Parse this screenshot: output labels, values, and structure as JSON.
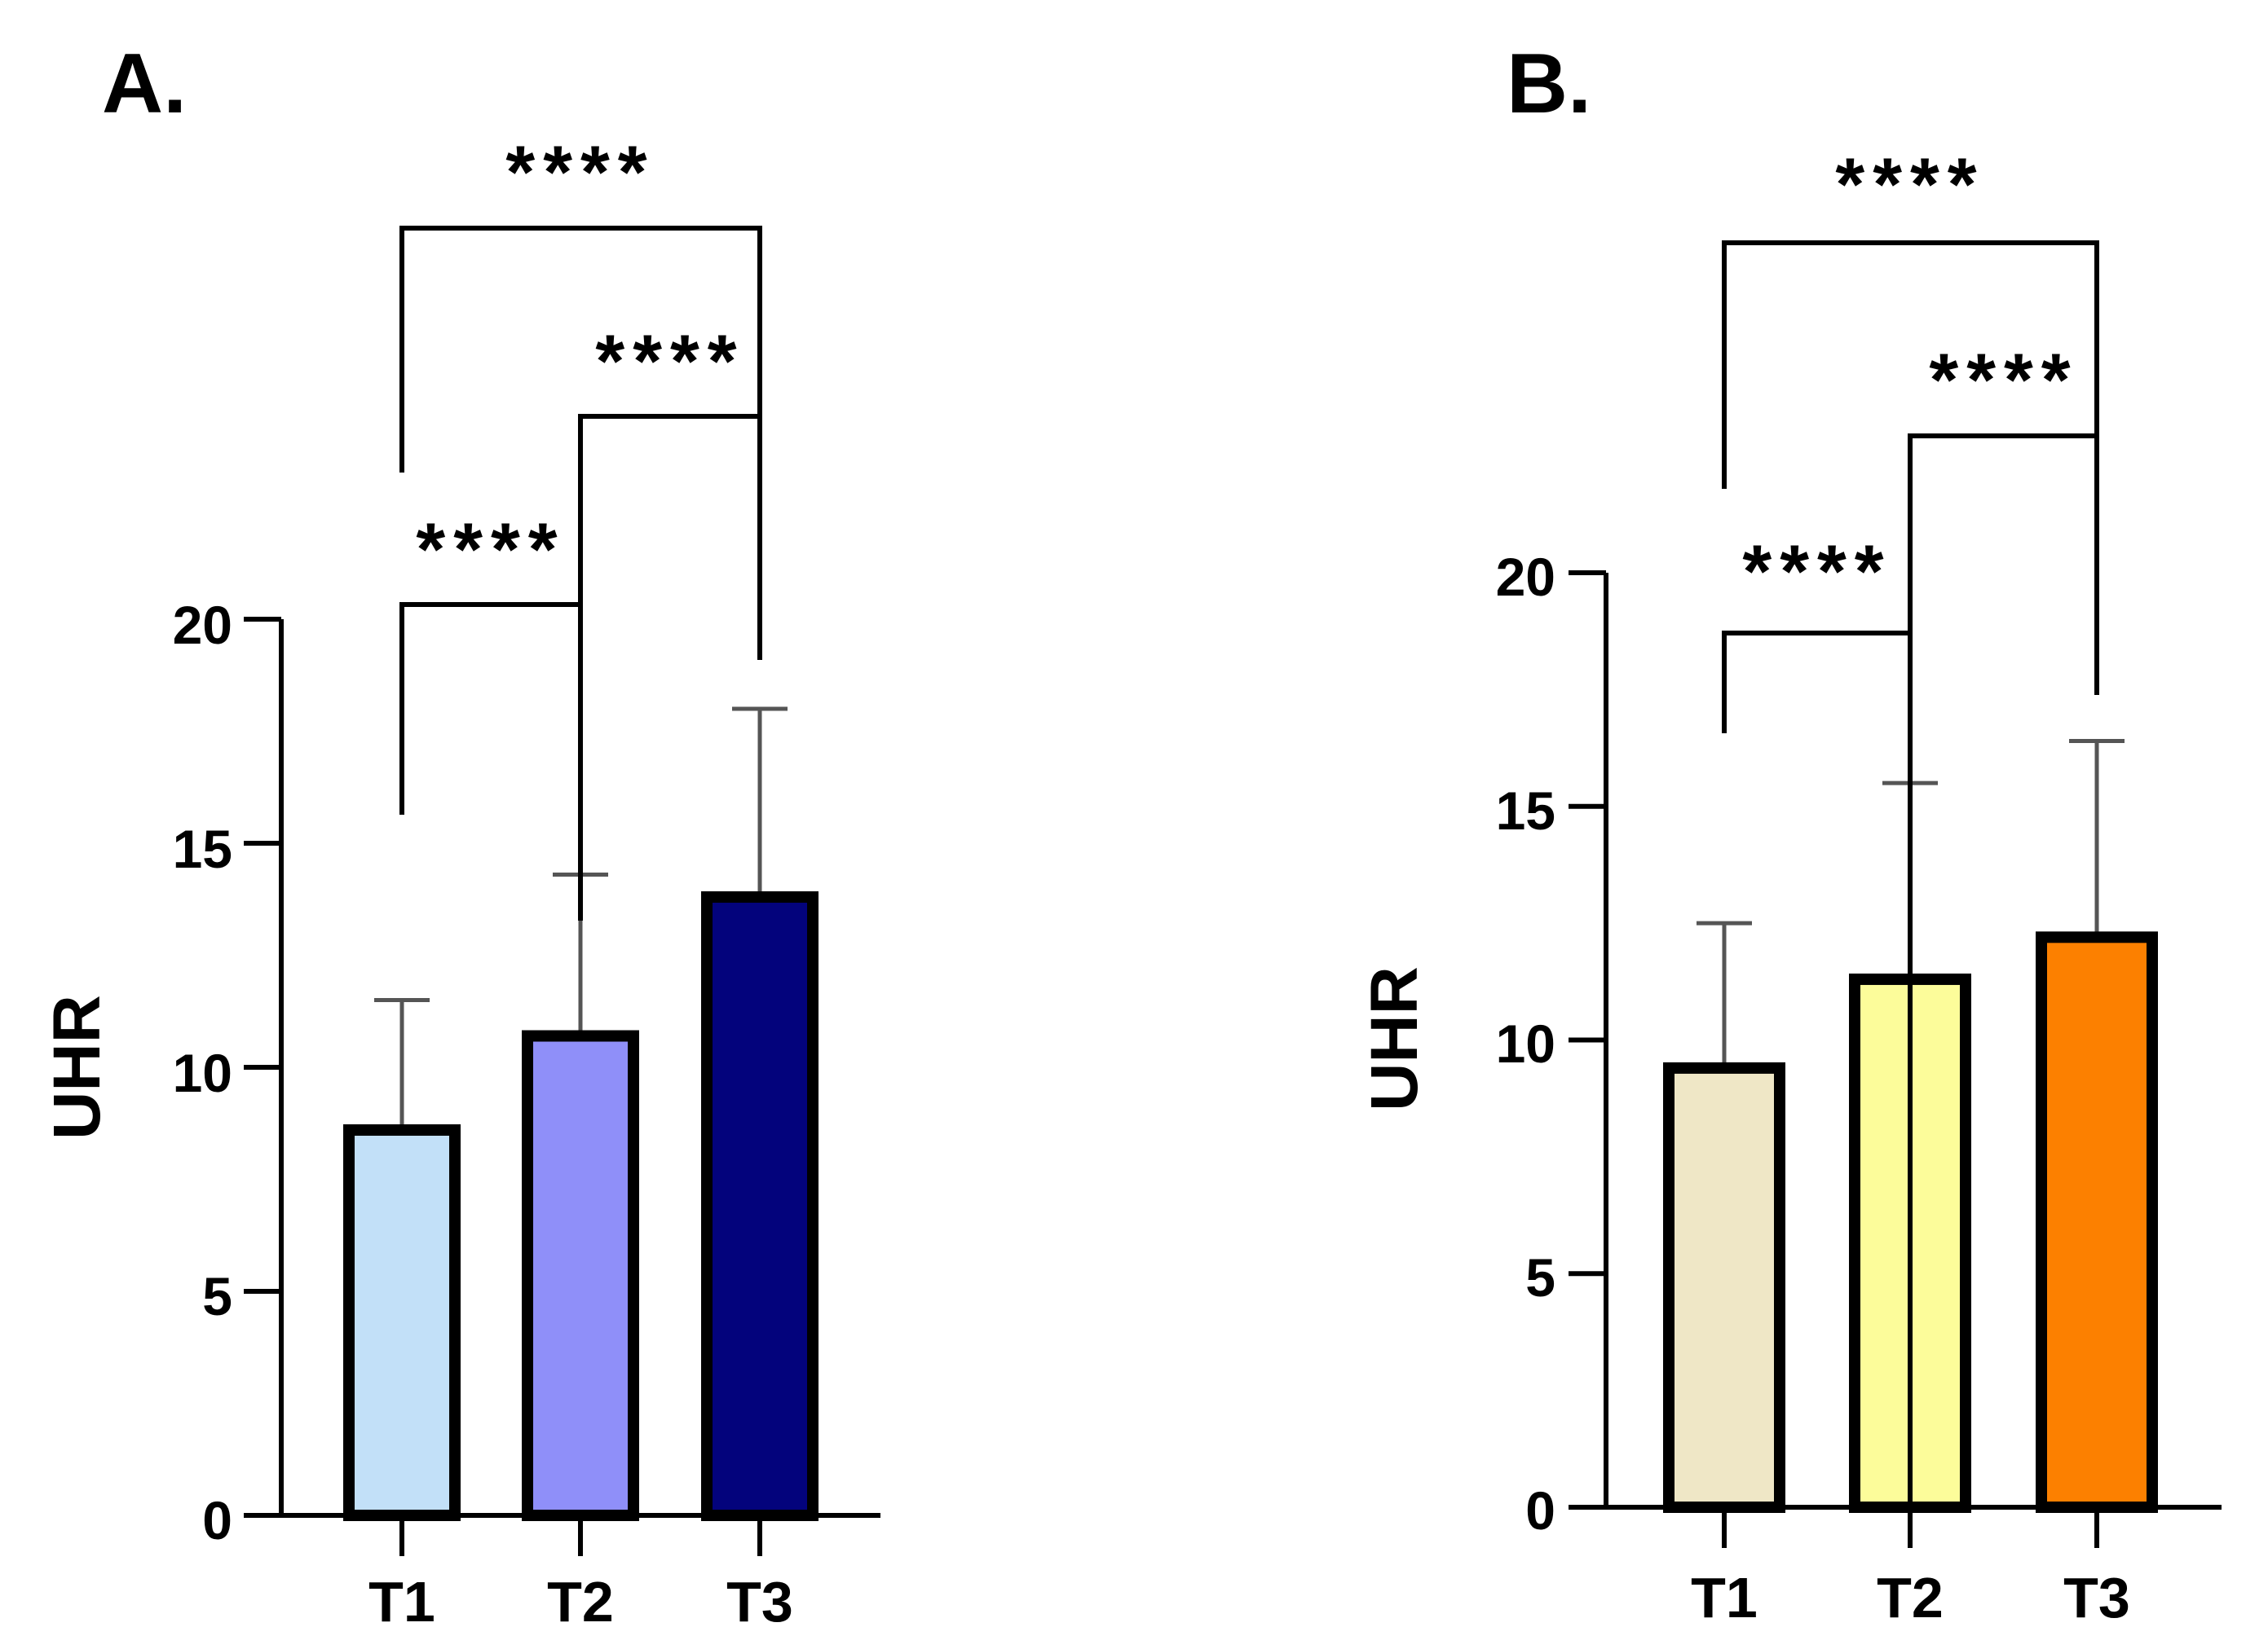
{
  "chart_data": [
    {
      "type": "bar",
      "panel_label": "A.",
      "categories": [
        "T1",
        "T2",
        "T3"
      ],
      "values": [
        8.6,
        10.7,
        13.8
      ],
      "errors": [
        2.9,
        3.6,
        4.2
      ],
      "colors": [
        "#c2e0f8",
        "#8f8ff9",
        "#03037c"
      ],
      "ylabel": "UHR",
      "xlabel": "",
      "ylim": [
        0,
        20
      ],
      "yticks": [
        "0",
        "5",
        "10",
        "15",
        "20"
      ],
      "grid": false,
      "significance": [
        {
          "from": "T1",
          "to": "T2",
          "label": "****"
        },
        {
          "from": "T2",
          "to": "T3",
          "label": "****"
        },
        {
          "from": "T1",
          "to": "T3",
          "label": "****"
        }
      ]
    },
    {
      "type": "bar",
      "panel_label": "B.",
      "categories": [
        "T1",
        "T2",
        "T3"
      ],
      "values": [
        9.4,
        11.3,
        12.2
      ],
      "errors": [
        3.1,
        4.2,
        4.2
      ],
      "colors": [
        "#efe7c6",
        "#fcfc9a",
        "#fc8000"
      ],
      "ylabel": "UHR",
      "xlabel": "",
      "ylim": [
        0,
        20
      ],
      "yticks": [
        "0",
        "5",
        "10",
        "15",
        "20"
      ],
      "grid": false,
      "significance": [
        {
          "from": "T1",
          "to": "T2",
          "label": "****"
        },
        {
          "from": "T2",
          "to": "T3",
          "label": "****"
        },
        {
          "from": "T1",
          "to": "T3",
          "label": "****"
        }
      ]
    }
  ]
}
